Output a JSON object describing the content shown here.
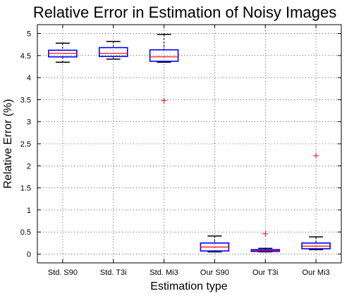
{
  "chart_data": {
    "type": "box",
    "title": "Relative Error in Estimation of Noisy Images",
    "xlabel": "Estimation type",
    "ylabel": "Relative Error (%)",
    "ylim": [
      -0.2,
      5.2
    ],
    "yticks": [
      0,
      0.5,
      1,
      1.5,
      2,
      2.5,
      3,
      3.5,
      4,
      4.5,
      5
    ],
    "ytick_labels": [
      "0",
      "0.5",
      "1",
      "1.5",
      "2",
      "2.5",
      "3",
      "3.5",
      "4",
      "4.5",
      "5"
    ],
    "grid": true,
    "categories": [
      "Std. S90",
      "Std. T3i",
      "Std. Mi3",
      "Our S90",
      "Our T3i",
      "Our Mi3"
    ],
    "boxes": [
      {
        "whisker_low": 4.35,
        "q1": 4.47,
        "median": 4.55,
        "q3": 4.62,
        "whisker_high": 4.78,
        "outliers": []
      },
      {
        "whisker_low": 4.42,
        "q1": 4.48,
        "median": 4.55,
        "q3": 4.68,
        "whisker_high": 4.82,
        "outliers": []
      },
      {
        "whisker_low": 4.35,
        "q1": 4.37,
        "median": 4.47,
        "q3": 4.63,
        "whisker_high": 4.98,
        "outliers": [
          3.48
        ]
      },
      {
        "whisker_low": 0.05,
        "q1": 0.07,
        "median": 0.16,
        "q3": 0.25,
        "whisker_high": 0.41,
        "outliers": []
      },
      {
        "whisker_low": 0.05,
        "q1": 0.06,
        "median": 0.08,
        "q3": 0.1,
        "whisker_high": 0.13,
        "outliers": [
          0.46
        ]
      },
      {
        "whisker_low": 0.1,
        "q1": 0.12,
        "median": 0.18,
        "q3": 0.25,
        "whisker_high": 0.39,
        "outliers": [
          2.23
        ]
      }
    ],
    "colors": {
      "box": "#0000ff",
      "median": "#ff0000",
      "whisker": "#000000",
      "outlier": "#ff0000",
      "grid": "#000000"
    }
  }
}
